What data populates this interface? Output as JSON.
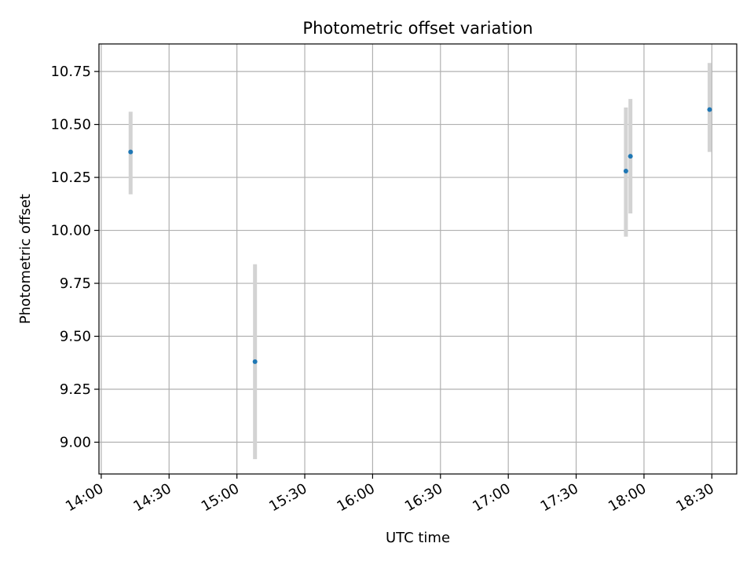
{
  "chart_data": {
    "type": "scatter",
    "title": "Photometric offset variation",
    "xlabel": "UTC time",
    "ylabel": "Photometric offset",
    "x_ticks": [
      "14:00",
      "14:30",
      "15:00",
      "15:30",
      "16:00",
      "16:30",
      "17:00",
      "17:30",
      "18:00",
      "18:30"
    ],
    "y_ticks": [
      "9.00",
      "9.25",
      "9.50",
      "9.75",
      "10.00",
      "10.25",
      "10.50",
      "10.75"
    ],
    "xlim": [
      "13:59",
      "18:41"
    ],
    "ylim": [
      8.85,
      10.88
    ],
    "grid": true,
    "points": [
      {
        "x": "14:13",
        "y": 10.37,
        "yerr_low": 10.17,
        "yerr_high": 10.56
      },
      {
        "x": "15:08",
        "y": 9.38,
        "yerr_low": 8.92,
        "yerr_high": 9.84
      },
      {
        "x": "17:52",
        "y": 10.28,
        "yerr_low": 9.97,
        "yerr_high": 10.58
      },
      {
        "x": "17:54",
        "y": 10.35,
        "yerr_low": 10.08,
        "yerr_high": 10.62
      },
      {
        "x": "18:29",
        "y": 10.57,
        "yerr_low": 10.37,
        "yerr_high": 10.79
      }
    ],
    "colors": {
      "point": "#1f77b4",
      "errorbar": "#d3d3d3",
      "grid": "#b0b0b0"
    }
  }
}
